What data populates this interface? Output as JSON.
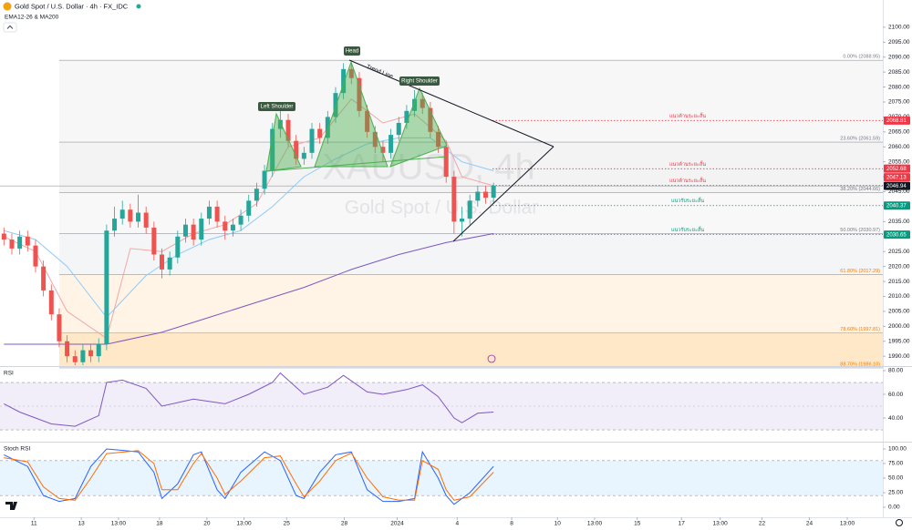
{
  "chart_data": [
    {
      "type": "candlestick",
      "title": "Gold Spot / U.S. Dollar · 4h · FX_IDC",
      "subtitle": "EMA12-26 & MA200",
      "x": [
        0,
        1,
        2,
        3,
        4,
        5,
        6,
        7,
        8,
        9,
        10,
        11,
        12,
        13,
        14,
        15,
        16,
        17,
        18,
        19,
        20,
        21,
        22,
        23,
        24,
        25,
        26,
        27,
        28,
        29,
        30,
        31,
        32,
        33,
        34,
        35,
        36,
        37,
        38,
        39,
        40,
        41,
        42,
        43,
        44,
        45,
        46,
        47,
        48,
        49,
        50,
        51,
        52,
        53,
        54,
        55,
        56,
        57,
        58,
        59,
        60,
        61,
        62
      ],
      "open": [
        2031,
        2029,
        2026,
        2030,
        2027,
        2020,
        2012,
        2004,
        1995,
        1990,
        1988,
        1992,
        1990,
        1994,
        2032,
        2036,
        2039,
        2035,
        2038,
        2033,
        2024,
        2019,
        2023,
        2030,
        2034,
        2029,
        2036,
        2040,
        2035,
        2032,
        2034,
        2037,
        2042,
        2046,
        2052,
        2066,
        2069,
        2062,
        2056,
        2058,
        2066,
        2063,
        2070,
        2078,
        2086,
        2083,
        2072,
        2065,
        2060,
        2058,
        2064,
        2068,
        2072,
        2076,
        2073,
        2065,
        2060,
        2050,
        2035,
        2036,
        2042,
        2045,
        2043
      ],
      "high": [
        2033,
        2031,
        2032,
        2032,
        2029,
        2022,
        2014,
        2006,
        1997,
        1992,
        1994,
        1994,
        1996,
        2034,
        2040,
        2042,
        2041,
        2044,
        2040,
        2035,
        2026,
        2025,
        2032,
        2036,
        2036,
        2038,
        2042,
        2042,
        2037,
        2036,
        2039,
        2044,
        2048,
        2054,
        2068,
        2072,
        2071,
        2064,
        2060,
        2068,
        2068,
        2072,
        2080,
        2088,
        2088,
        2085,
        2074,
        2067,
        2062,
        2066,
        2070,
        2074,
        2079,
        2078,
        2075,
        2067,
        2062,
        2052,
        2040,
        2044,
        2047,
        2047,
        2048
      ],
      "low": [
        2027,
        2024,
        2024,
        2025,
        2018,
        2010,
        2002,
        1993,
        1988,
        1987,
        1987,
        1988,
        1988,
        1992,
        2030,
        2034,
        2033,
        2033,
        2031,
        2022,
        2016,
        2017,
        2021,
        2028,
        2027,
        2027,
        2034,
        2033,
        2029,
        2030,
        2032,
        2035,
        2040,
        2044,
        2050,
        2063,
        2060,
        2054,
        2054,
        2056,
        2061,
        2061,
        2068,
        2076,
        2081,
        2070,
        2063,
        2058,
        2055,
        2056,
        2062,
        2066,
        2070,
        2071,
        2063,
        2058,
        2048,
        2031,
        2030,
        2034,
        2040,
        2041,
        2041
      ],
      "close": [
        2029,
        2026,
        2030,
        2027,
        2020,
        2012,
        2004,
        1995,
        1990,
        1988,
        1992,
        1990,
        1994,
        2032,
        2036,
        2039,
        2035,
        2038,
        2033,
        2024,
        2019,
        2023,
        2030,
        2034,
        2029,
        2036,
        2040,
        2035,
        2032,
        2034,
        2037,
        2042,
        2046,
        2052,
        2066,
        2069,
        2062,
        2056,
        2058,
        2066,
        2063,
        2070,
        2078,
        2086,
        2083,
        2072,
        2065,
        2060,
        2058,
        2064,
        2068,
        2072,
        2076,
        2073,
        2065,
        2060,
        2050,
        2035,
        2036,
        2042,
        2045,
        2043,
        2047
      ],
      "up_color": "#26a69a",
      "down_color": "#ef5350",
      "xlim": [
        -0.5,
        111.3
      ],
      "ylim": [
        1986.7,
        2109.1
      ],
      "xticks": [
        {
          "value": 3.8,
          "label": "11"
        },
        {
          "value": 9.8,
          "label": "13"
        },
        {
          "value": 14.5,
          "label": "13:00"
        },
        {
          "value": 19.7,
          "label": "18"
        },
        {
          "value": 25.7,
          "label": "20"
        },
        {
          "value": 30.4,
          "label": "13:00"
        },
        {
          "value": 35.8,
          "label": "25"
        },
        {
          "value": 43.1,
          "label": "28"
        },
        {
          "value": 49.8,
          "label": "2024"
        },
        {
          "value": 57.4,
          "label": "4"
        },
        {
          "value": 64.3,
          "label": "8"
        },
        {
          "value": 70.1,
          "label": "10"
        },
        {
          "value": 74.8,
          "label": "13:00"
        },
        {
          "value": 80.2,
          "label": "15"
        },
        {
          "value": 85.8,
          "label": "17"
        },
        {
          "value": 90.7,
          "label": "13:00"
        },
        {
          "value": 96.0,
          "label": "22"
        },
        {
          "value": 102.0,
          "label": "24"
        },
        {
          "value": 106.8,
          "label": "13:00"
        }
      ],
      "yticks": [
        {
          "value": 2100,
          "label": "2100.00"
        },
        {
          "value": 2095,
          "label": "2095.00"
        },
        {
          "value": 2090,
          "label": "2090.00"
        },
        {
          "value": 2085,
          "label": "2085.00"
        },
        {
          "value": 2080,
          "label": "2080.00"
        },
        {
          "value": 2075,
          "label": "2075.00"
        },
        {
          "value": 2070,
          "label": "2070.00"
        },
        {
          "value": 2065,
          "label": "2065.00"
        },
        {
          "value": 2060,
          "label": "2060.00"
        },
        {
          "value": 2055,
          "label": "2055.00"
        },
        {
          "value": 2050,
          "label": "2050.00"
        },
        {
          "value": 2045,
          "label": "2045.00"
        },
        {
          "value": 2040,
          "label": "2040.00"
        },
        {
          "value": 2035,
          "label": "2035.00"
        },
        {
          "value": 2030,
          "label": "2030.00"
        },
        {
          "value": 2025,
          "label": "2025.00"
        },
        {
          "value": 2020,
          "label": "2020.00"
        },
        {
          "value": 2015,
          "label": "2015.00"
        },
        {
          "value": 2010,
          "label": "2010.00"
        },
        {
          "value": 2005,
          "label": "2005.00"
        },
        {
          "value": 2000,
          "label": "2000.00"
        },
        {
          "value": 1995,
          "label": "1995.00"
        },
        {
          "value": 1990,
          "label": "1990.00"
        }
      ],
      "lines": [
        {
          "color": "#90caf9",
          "x": [
            0,
            4,
            8,
            13,
            18,
            22,
            26,
            30,
            34,
            38,
            42,
            46,
            50,
            54,
            58,
            62
          ],
          "values": [
            2032,
            2029,
            2020,
            2003,
            2017,
            2024,
            2029,
            2032,
            2040,
            2050,
            2056,
            2061,
            2063,
            2063,
            2055,
            2052
          ]
        },
        {
          "color": "#f4a6a6",
          "x": [
            0,
            4,
            8,
            13,
            16,
            20,
            24,
            28,
            32,
            36,
            40,
            44,
            48,
            52,
            56,
            58,
            62
          ],
          "values": [
            2030,
            2025,
            2005,
            1996,
            2026,
            2025,
            2031,
            2034,
            2041,
            2060,
            2063,
            2076,
            2068,
            2071,
            2062,
            2050,
            2047
          ]
        },
        {
          "color": "#7e57c2",
          "x": [
            0,
            8,
            13,
            20,
            26,
            32,
            38,
            44,
            50,
            56,
            62
          ],
          "values": [
            1994,
            1994,
            1994,
            1998,
            2003,
            2008,
            2013,
            2019,
            2024,
            2028,
            2031
          ]
        }
      ],
      "fib_levels": [
        {
          "value": 2088.95,
          "label": "0.00% (2088.95)",
          "color": "rgba(120,123,134,0.06)"
        },
        {
          "value": 2061.59,
          "label": "23.60% (2061.59)",
          "color": "rgba(120,123,134,0.09)"
        },
        {
          "value": 2044.66,
          "label": "38.20% (2044.66)",
          "color": "rgba(120,123,134,0.05)"
        },
        {
          "value": 2030.97,
          "label": "50.00% (2030.97)",
          "color": "rgba(120,123,134,0.08)"
        },
        {
          "value": 2017.29,
          "label": "61.80% (2017.29)",
          "color": "rgba(255,152,0,0.10)"
        },
        {
          "value": 1997.81,
          "label": "78.60% (1997.81)",
          "color": "rgba(255,152,0,0.22)"
        },
        {
          "value": 1986.1,
          "label": "88.70% (1986.10)",
          "color": "rgba(255,152,0,0.22)"
        }
      ],
      "price_lines": [
        {
          "value": 2068.81,
          "note": "แนวต้านระยะสั้น",
          "color": "#f23645"
        },
        {
          "value": 2052.68,
          "note": "แนวต้านระยะสั้น",
          "color": "#f23645"
        },
        {
          "value": 2047.13,
          "note": "แนวต้านระยะสั้น",
          "color": "#f23645"
        },
        {
          "value": 2046.94,
          "color": "#131722",
          "current": true
        },
        {
          "value": 2040.37,
          "note": "แนวรับระยะสั้น",
          "color": "#089981"
        },
        {
          "value": 2030.65,
          "note": "แนวรับระยะสั้น",
          "color": "#089981"
        }
      ],
      "annotations": {
        "left_shoulder": "Left Shoulder",
        "head": "Head",
        "right_shoulder": "Right Shoulder",
        "trend_line": "Trend Line"
      },
      "watermark": {
        "ticker": "XAUUSD, 4h",
        "name": "Gold Spot / U.S. Dollar"
      }
    },
    {
      "type": "line",
      "title": "RSI",
      "ylim": [
        20.8,
        83.1
      ],
      "yticks": [
        {
          "value": 80,
          "label": "80.00"
        },
        {
          "value": 60,
          "label": "60.00"
        },
        {
          "value": 40,
          "label": "40.00"
        }
      ],
      "band": [
        30,
        70
      ],
      "midline": 50,
      "band_color": "rgba(126,87,194,0.10)",
      "series": [
        {
          "color": "#7e57c2",
          "x": [
            0,
            2,
            6,
            9,
            12,
            13,
            15,
            18,
            20,
            24,
            28,
            31,
            34,
            35,
            38,
            41,
            43,
            46,
            48,
            51,
            53,
            55,
            57,
            58,
            60,
            62
          ],
          "values": [
            52,
            45,
            35,
            33,
            42,
            70,
            72,
            65,
            50,
            56,
            52,
            60,
            70,
            78,
            60,
            66,
            76,
            62,
            60,
            64,
            68,
            58,
            40,
            36,
            44,
            45
          ]
        }
      ]
    },
    {
      "type": "line",
      "title": "Stoch RSI",
      "ylim": [
        -17.2,
        109.4
      ],
      "yticks": [
        {
          "value": 100,
          "label": "100.00"
        },
        {
          "value": 75,
          "label": "75.00"
        },
        {
          "value": 50,
          "label": "50.00"
        },
        {
          "value": 25,
          "label": "25.00"
        },
        {
          "value": 0,
          "label": "0.00"
        }
      ],
      "band": [
        20,
        80
      ],
      "band_color": "rgba(33,150,243,0.10)",
      "series": [
        {
          "color": "#2962ff",
          "x": [
            0,
            3,
            5,
            7,
            9,
            11,
            13,
            17,
            19,
            20,
            22,
            24,
            25,
            27,
            28,
            30,
            33,
            35,
            37,
            38,
            40,
            42,
            44,
            46,
            48,
            50,
            52,
            53,
            55,
            56,
            57,
            59,
            62
          ],
          "values": [
            90,
            70,
            20,
            10,
            15,
            70,
            100,
            95,
            60,
            15,
            40,
            90,
            95,
            30,
            15,
            60,
            95,
            80,
            20,
            15,
            60,
            90,
            95,
            30,
            10,
            10,
            15,
            95,
            50,
            20,
            5,
            25,
            70
          ]
        },
        {
          "color": "#ff6d00",
          "x": [
            0,
            3,
            5,
            7,
            9,
            11,
            13,
            17,
            19,
            20,
            22,
            24,
            25,
            27,
            28,
            30,
            33,
            35,
            37,
            38,
            40,
            42,
            44,
            46,
            48,
            50,
            52,
            53,
            55,
            56,
            57,
            59,
            62
          ],
          "values": [
            85,
            78,
            35,
            15,
            12,
            50,
            92,
            97,
            75,
            30,
            30,
            75,
            92,
            50,
            22,
            45,
            85,
            88,
            40,
            18,
            45,
            80,
            93,
            50,
            18,
            12,
            12,
            80,
            65,
            30,
            12,
            18,
            60
          ]
        }
      ]
    }
  ]
}
